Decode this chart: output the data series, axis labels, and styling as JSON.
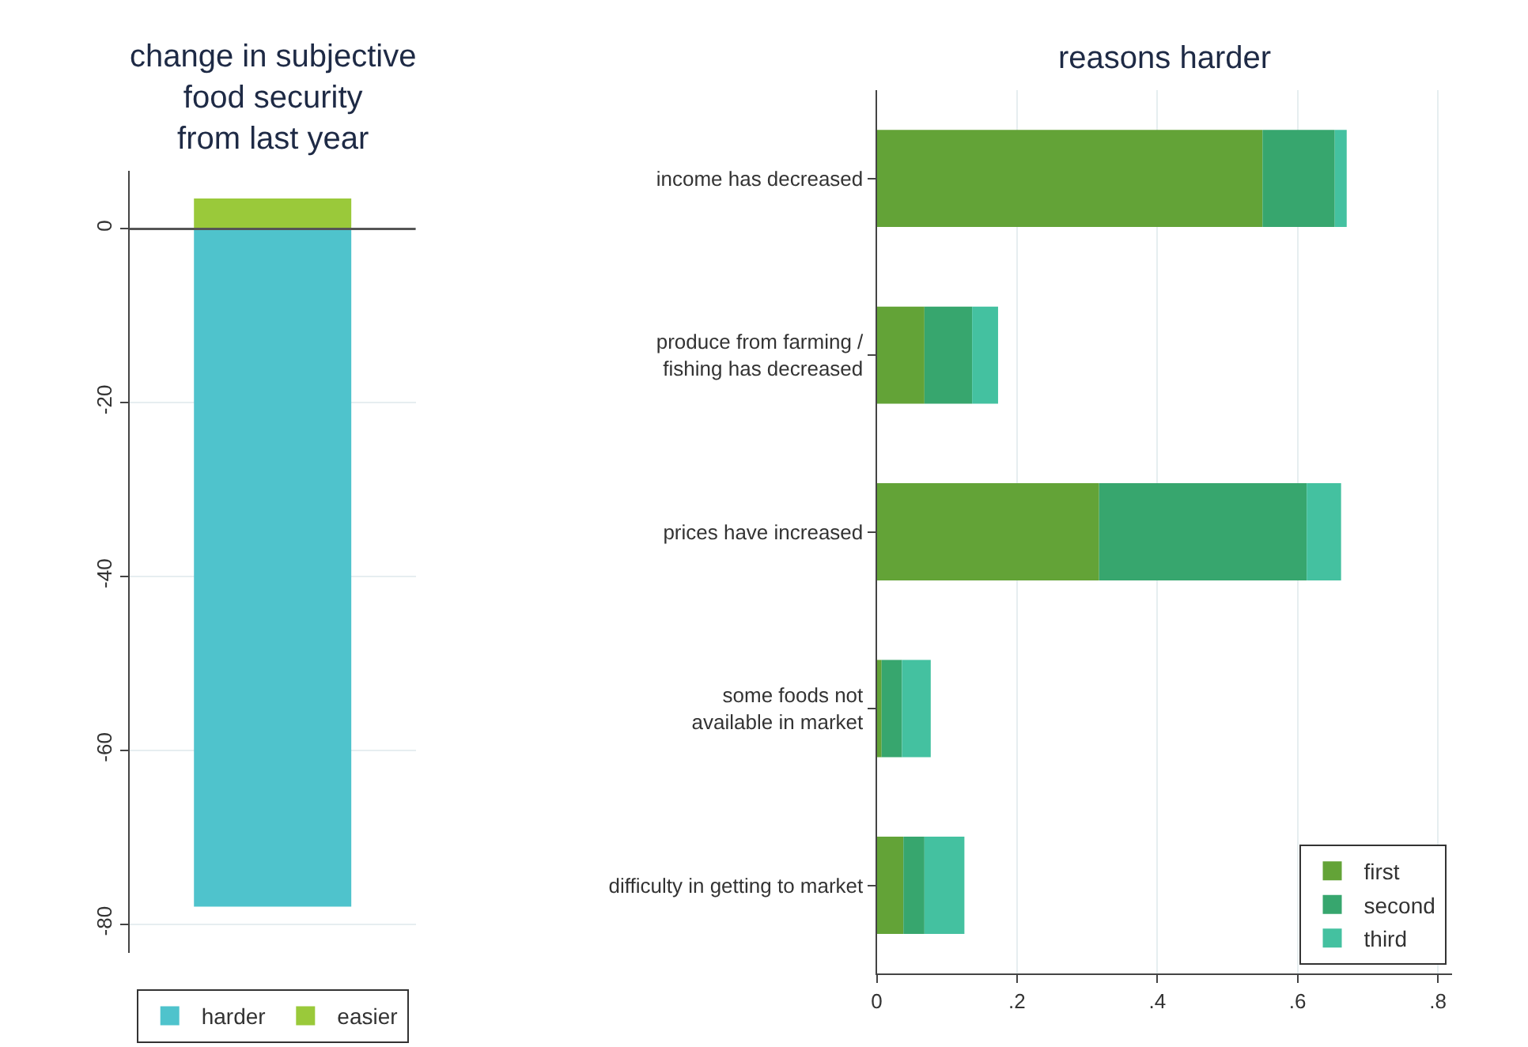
{
  "chart_data": [
    {
      "type": "bar",
      "title": "change in subjective\nfood security\nfrom last year",
      "categories": [
        null
      ],
      "stacked": true,
      "series": [
        {
          "name": "harder",
          "color": "#4fc3cc",
          "values": [
            -78
          ]
        },
        {
          "name": "easier",
          "color": "#9ac93a",
          "values": [
            3.5
          ]
        }
      ],
      "ylim": [
        -83.3,
        6.7
      ],
      "yticks": [
        -80,
        -60,
        -40,
        -20,
        0
      ],
      "grid": "y",
      "legend": "bottom",
      "tick_labels": "y",
      "ref_lines": [
        {
          "axis": "y",
          "value": 0,
          "color": "#555555"
        }
      ]
    },
    {
      "type": "bar",
      "title": "reasons harder",
      "orientation": "horizontal",
      "stacked": true,
      "categories": [
        "income has decreased",
        "produce from farming /\nfishing has decreased",
        "prices have increased",
        "some foods not\navailable in market",
        "difficulty in getting to market"
      ],
      "series": [
        {
          "name": "first",
          "color": "#63a337",
          "values": [
            0.55,
            0.068,
            0.317,
            0.007,
            0.038
          ]
        },
        {
          "name": "second",
          "color": "#37a66e",
          "values": [
            0.103,
            0.068,
            0.296,
            0.029,
            0.03
          ]
        },
        {
          "name": "third",
          "color": "#44c1a0",
          "values": [
            0.017,
            0.037,
            0.049,
            0.041,
            0.057
          ]
        }
      ],
      "xlim": [
        0,
        0.82
      ],
      "xticks": [
        {
          "value": 0,
          "label": "0"
        },
        {
          "value": 0.2,
          "label": ".2"
        },
        {
          "value": 0.4,
          "label": ".4"
        },
        {
          "value": 0.6,
          "label": ".6"
        },
        {
          "value": 0.8,
          "label": ".8"
        }
      ],
      "grid": "x",
      "legend": "bottom right"
    }
  ]
}
